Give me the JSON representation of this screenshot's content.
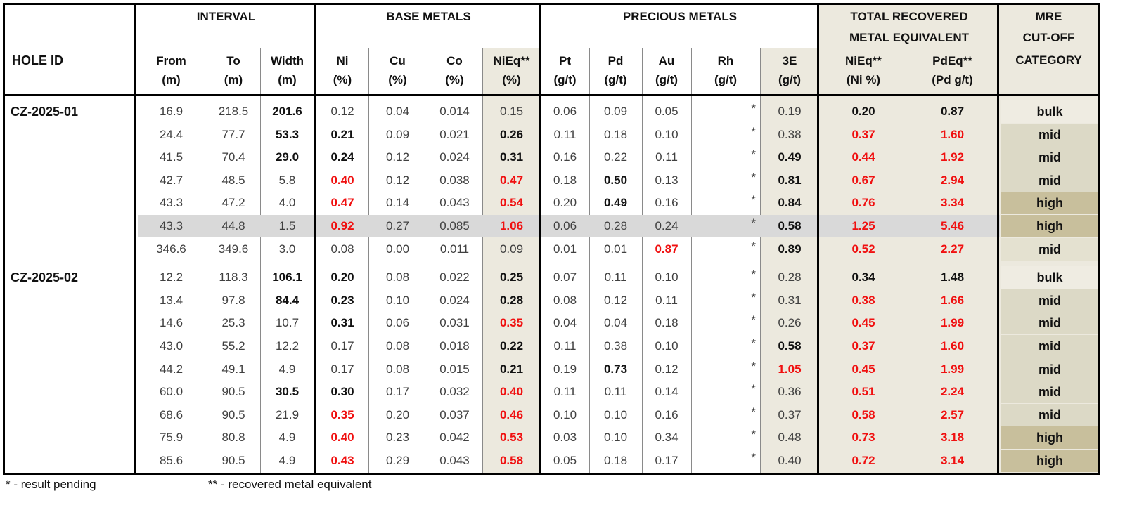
{
  "header": {
    "hole_id": "HOLE ID",
    "groups": {
      "interval": "INTERVAL",
      "base_metals": "BASE METALS",
      "precious_metals": "PRECIOUS METALS",
      "total_recovered_1": "TOTAL RECOVERED",
      "total_recovered_2": "METAL EQUIVALENT",
      "mre_1": "MRE",
      "mre_2": "CUT-OFF",
      "mre_3": "CATEGORY"
    },
    "columns": [
      {
        "name": "From",
        "unit": "(m)"
      },
      {
        "name": "To",
        "unit": "(m)"
      },
      {
        "name": "Width",
        "unit": "(m)"
      },
      {
        "name": "Ni",
        "unit": "(%)"
      },
      {
        "name": "Cu",
        "unit": "(%)"
      },
      {
        "name": "Co",
        "unit": "(%)"
      },
      {
        "name": "NiEq**",
        "unit": "(%)"
      },
      {
        "name": "Pt",
        "unit": "(g/t)"
      },
      {
        "name": "Pd",
        "unit": "(g/t)"
      },
      {
        "name": "Au",
        "unit": "(g/t)"
      },
      {
        "name": "Rh",
        "unit": "(g/t)"
      },
      {
        "name": "3E",
        "unit": "(g/t)"
      },
      {
        "name": "NiEq**",
        "unit": "(Ni %)"
      },
      {
        "name": "PdEq**",
        "unit": "(Pd g/t)"
      }
    ]
  },
  "rows": [
    {
      "hole": "CZ-2025-01",
      "values": [
        "16.9",
        "218.5",
        "201.6",
        "0.12",
        "0.04",
        "0.014",
        "0.15",
        "0.06",
        "0.09",
        "0.05",
        "*",
        "0.19",
        "0.20",
        "0.87"
      ],
      "fmt": "nnbnnnnnnnnnbb",
      "category": "bulk",
      "cat_shade": "bulk"
    },
    {
      "hole": "",
      "values": [
        "24.4",
        "77.7",
        "53.3",
        "0.21",
        "0.09",
        "0.021",
        "0.26",
        "0.11",
        "0.18",
        "0.10",
        "*",
        "0.38",
        "0.37",
        "1.60"
      ],
      "fmt": "nnbbnnbnnnnnrr",
      "category": "mid",
      "cat_shade": "mid"
    },
    {
      "hole": "",
      "values": [
        "41.5",
        "70.4",
        "29.0",
        "0.24",
        "0.12",
        "0.024",
        "0.31",
        "0.16",
        "0.22",
        "0.11",
        "*",
        "0.49",
        "0.44",
        "1.92"
      ],
      "fmt": "nnbbnnbnnnnbrr",
      "category": "mid",
      "cat_shade": "mid"
    },
    {
      "hole": "",
      "values": [
        "42.7",
        "48.5",
        "5.8",
        "0.40",
        "0.12",
        "0.038",
        "0.47",
        "0.18",
        "0.50",
        "0.13",
        "*",
        "0.81",
        "0.67",
        "2.94"
      ],
      "fmt": "nnnrnnrnbnnbrr",
      "category": "mid",
      "cat_shade": "mid"
    },
    {
      "hole": "",
      "values": [
        "43.3",
        "47.2",
        "4.0",
        "0.47",
        "0.14",
        "0.043",
        "0.54",
        "0.20",
        "0.49",
        "0.16",
        "*",
        "0.84",
        "0.76",
        "3.34"
      ],
      "fmt": "nnnrnnrnbnnbrr",
      "category": "high",
      "cat_shade": "high"
    },
    {
      "hole": "",
      "values": [
        "43.3",
        "44.8",
        "1.5",
        "0.92",
        "0.27",
        "0.085",
        "1.06",
        "0.06",
        "0.28",
        "0.24",
        "*",
        "0.58",
        "1.25",
        "5.46"
      ],
      "fmt": "nnnrnnrnnnnbrr",
      "category": "high",
      "cat_shade": "high",
      "highlight": true
    },
    {
      "hole": "",
      "values": [
        "346.6",
        "349.6",
        "3.0",
        "0.08",
        "0.00",
        "0.011",
        "0.09",
        "0.01",
        "0.01",
        "0.87",
        "*",
        "0.89",
        "0.52",
        "2.27"
      ],
      "fmt": "nnnnnnnnnrnbrr",
      "category": "mid",
      "cat_shade": "midlight"
    },
    {
      "hole": "CZ-2025-02",
      "values": [
        "12.2",
        "118.3",
        "106.1",
        "0.20",
        "0.08",
        "0.022",
        "0.25",
        "0.07",
        "0.11",
        "0.10",
        "*",
        "0.28",
        "0.34",
        "1.48"
      ],
      "fmt": "nnbbnnbnnnnnbb",
      "category": "bulk",
      "cat_shade": "bulk"
    },
    {
      "hole": "",
      "values": [
        "13.4",
        "97.8",
        "84.4",
        "0.23",
        "0.10",
        "0.024",
        "0.28",
        "0.08",
        "0.12",
        "0.11",
        "*",
        "0.31",
        "0.38",
        "1.66"
      ],
      "fmt": "nnbbnnbnnnnnrr",
      "category": "mid",
      "cat_shade": "mid"
    },
    {
      "hole": "",
      "values": [
        "14.6",
        "25.3",
        "10.7",
        "0.31",
        "0.06",
        "0.031",
        "0.35",
        "0.04",
        "0.04",
        "0.18",
        "*",
        "0.26",
        "0.45",
        "1.99"
      ],
      "fmt": "nnnbnnrnnnnnrr",
      "category": "mid",
      "cat_shade": "mid"
    },
    {
      "hole": "",
      "values": [
        "43.0",
        "55.2",
        "12.2",
        "0.17",
        "0.08",
        "0.018",
        "0.22",
        "0.11",
        "0.38",
        "0.10",
        "*",
        "0.58",
        "0.37",
        "1.60"
      ],
      "fmt": "nnnnnnbnnnnbrr",
      "category": "mid",
      "cat_shade": "mid"
    },
    {
      "hole": "",
      "values": [
        "44.2",
        "49.1",
        "4.9",
        "0.17",
        "0.08",
        "0.015",
        "0.21",
        "0.19",
        "0.73",
        "0.12",
        "*",
        "1.05",
        "0.45",
        "1.99"
      ],
      "fmt": "nnnnnnbnbnnrrr",
      "category": "mid",
      "cat_shade": "mid"
    },
    {
      "hole": "",
      "values": [
        "60.0",
        "90.5",
        "30.5",
        "0.30",
        "0.17",
        "0.032",
        "0.40",
        "0.11",
        "0.11",
        "0.14",
        "*",
        "0.36",
        "0.51",
        "2.24"
      ],
      "fmt": "nnbbnnrnnnnnrr",
      "category": "mid",
      "cat_shade": "mid"
    },
    {
      "hole": "",
      "values": [
        "68.6",
        "90.5",
        "21.9",
        "0.35",
        "0.20",
        "0.037",
        "0.46",
        "0.10",
        "0.10",
        "0.16",
        "*",
        "0.37",
        "0.58",
        "2.57"
      ],
      "fmt": "nnnrnnrnnnnnrr",
      "category": "mid",
      "cat_shade": "mid"
    },
    {
      "hole": "",
      "values": [
        "75.9",
        "80.8",
        "4.9",
        "0.40",
        "0.23",
        "0.042",
        "0.53",
        "0.03",
        "0.10",
        "0.34",
        "*",
        "0.48",
        "0.73",
        "3.18"
      ],
      "fmt": "nnnrnnrnnnnnrr",
      "category": "high",
      "cat_shade": "high"
    },
    {
      "hole": "",
      "values": [
        "85.6",
        "90.5",
        "4.9",
        "0.43",
        "0.29",
        "0.043",
        "0.58",
        "0.05",
        "0.18",
        "0.17",
        "*",
        "0.40",
        "0.72",
        "3.14"
      ],
      "fmt": "nnnrnnrnnnnnrr",
      "category": "high",
      "cat_shade": "high"
    }
  ],
  "footnotes": {
    "pending": "* - result pending",
    "equivalent": "** - recovered metal equivalent"
  },
  "colors": {
    "highlight_value": "#f01010",
    "column_shade": "#ece9de",
    "row_highlight": "#d9d9d9",
    "mid_shade": "#dcd9c6",
    "high_shade": "#c8bf9c"
  }
}
